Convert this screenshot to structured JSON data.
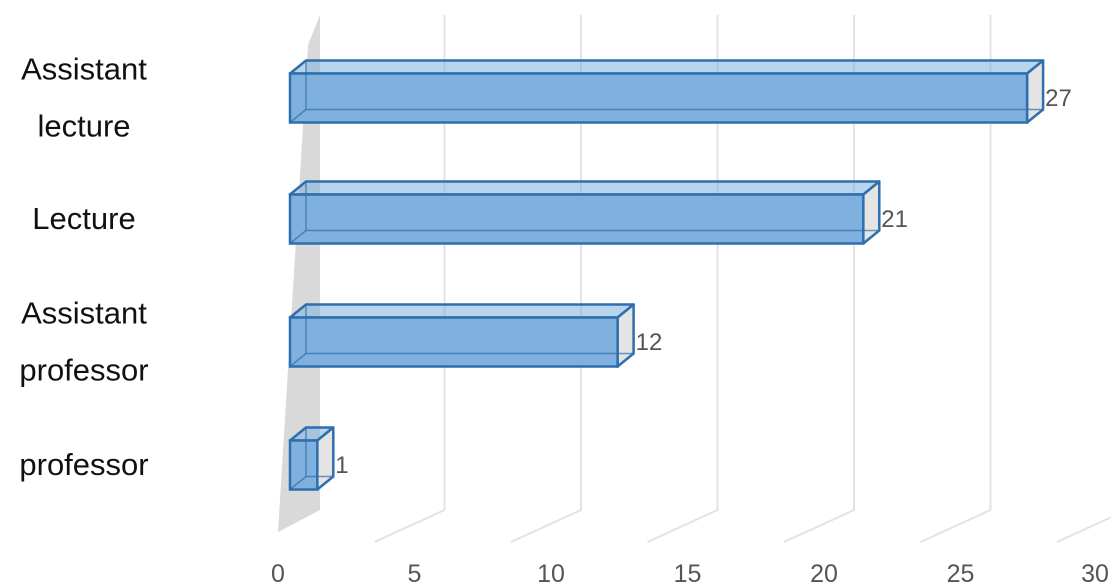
{
  "chart_data": {
    "type": "bar",
    "orientation": "horizontal",
    "style": "3d",
    "categories": [
      [
        "Assistant",
        "lecture"
      ],
      [
        "Lecture"
      ],
      [
        "Assistant",
        "professor"
      ],
      [
        "professor"
      ]
    ],
    "values": [
      27,
      21,
      12,
      1
    ],
    "data_labels": [
      "27",
      "21",
      "12",
      "1"
    ],
    "xlim": [
      0,
      30
    ],
    "x_ticks": [
      0,
      5,
      10,
      15,
      20,
      25,
      30
    ],
    "x_tick_labels": [
      "0",
      "5",
      "10",
      "15",
      "20",
      "25",
      "30"
    ],
    "grid": true,
    "legend": "none",
    "colors": {
      "bar_fill": "#7fb0de",
      "bar_edge": "#2e6fad",
      "bar_end_face": "#e4e4e4",
      "wall": "#d9d9d9",
      "gridline": "#e3e3e3"
    }
  }
}
